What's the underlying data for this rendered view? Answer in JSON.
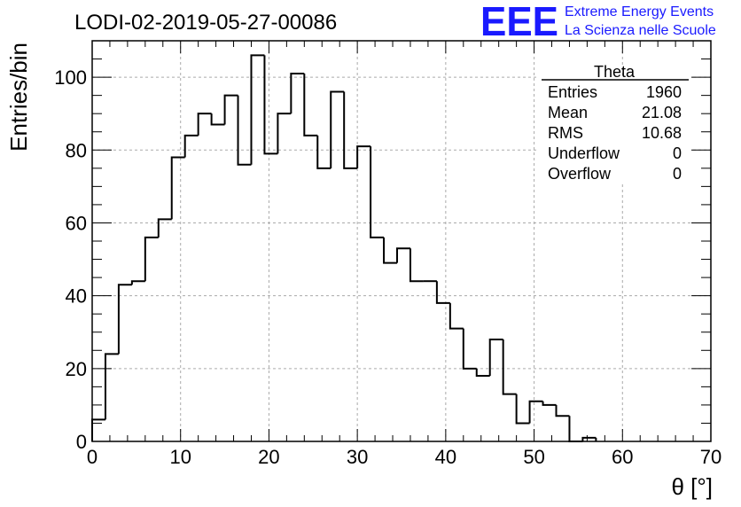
{
  "chart_data": {
    "type": "bar",
    "title": "LODI-02-2019-05-27-00086",
    "xlabel": "θ [°]",
    "ylabel": "Entries/bin",
    "xlim": [
      0,
      70
    ],
    "ylim": [
      0,
      110
    ],
    "grid": true,
    "xticks": [
      "0",
      "10",
      "20",
      "30",
      "40",
      "50",
      "60",
      "70"
    ],
    "yticks": [
      "0",
      "20",
      "40",
      "60",
      "80",
      "100"
    ],
    "bin_width": 1.5,
    "x_start": 0,
    "values": [
      6,
      24,
      43,
      44,
      56,
      61,
      78,
      84,
      90,
      87,
      95,
      76,
      106,
      79,
      90,
      101,
      84,
      75,
      96,
      75,
      81,
      56,
      49,
      53,
      44,
      44,
      38,
      31,
      20,
      18,
      28,
      13,
      5,
      11,
      10,
      7,
      0,
      1
    ]
  },
  "stats_box": {
    "name": "Theta",
    "rows": [
      {
        "label": "Entries",
        "value": "1960"
      },
      {
        "label": "Mean",
        "value": "21.08"
      },
      {
        "label": "RMS",
        "value": "10.68"
      },
      {
        "label": "Underflow",
        "value": "0"
      },
      {
        "label": "Overflow",
        "value": "0"
      }
    ]
  },
  "logo": {
    "mark": "EEE",
    "line1": "Extreme Energy Events",
    "line2": "La Scienza nelle Scuole",
    "color": "#1a1aff"
  }
}
